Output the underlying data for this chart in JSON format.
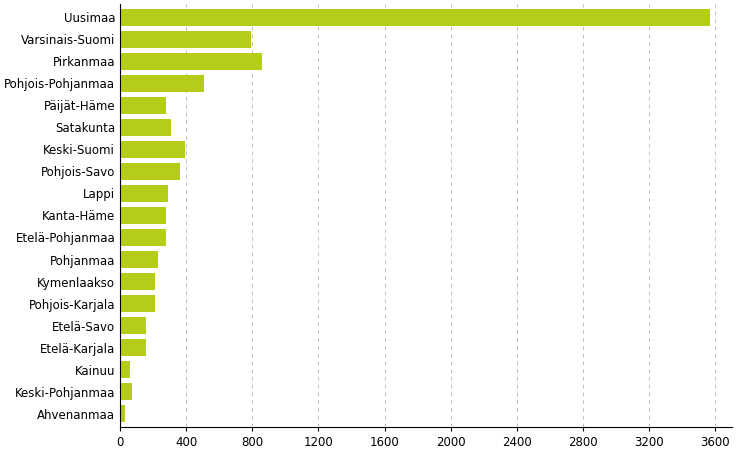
{
  "categories": [
    "Uusimaa",
    "Varsinais-Suomi",
    "Pirkanmaa",
    "Pohjois-Pohjanmaa",
    "Päijät-Häme",
    "Satakunta",
    "Keski-Suomi",
    "Pohjois-Savo",
    "Lappi",
    "Kanta-Häme",
    "Etelä-Pohjanmaa",
    "Pohjanmaa",
    "Kymenlaakso",
    "Pohjois-Karjala",
    "Etelä-Savo",
    "Etelä-Karjala",
    "Kainuu",
    "Keski-Pohjanmaa",
    "Ahvenanmaa"
  ],
  "values": [
    3570,
    790,
    860,
    510,
    280,
    310,
    390,
    360,
    290,
    280,
    280,
    230,
    210,
    210,
    160,
    155,
    60,
    70,
    30
  ],
  "bar_color": "#b5cc18",
  "xlim": [
    0,
    3700
  ],
  "xticks": [
    0,
    400,
    800,
    1200,
    1600,
    2000,
    2400,
    2800,
    3200,
    3600
  ],
  "xtick_labels": [
    "0",
    "400",
    "800",
    "1200",
    "1600",
    "2000",
    "2400",
    "2800",
    "3200",
    "3600"
  ],
  "figsize": [
    7.36,
    4.53
  ],
  "dpi": 100,
  "grid_color": "#c0c0c0",
  "background_color": "#ffffff",
  "bar_height": 0.75,
  "font_size": 8.5
}
